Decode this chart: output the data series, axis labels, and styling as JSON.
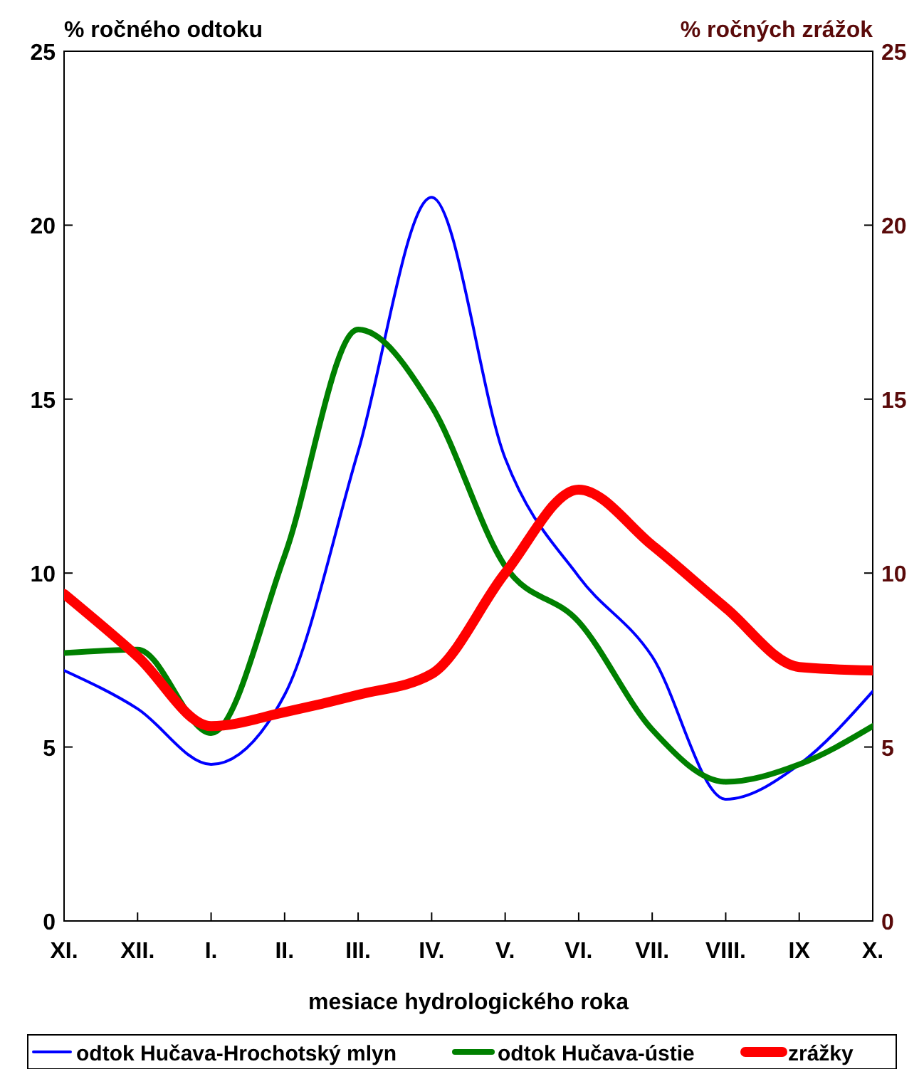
{
  "chart_data": {
    "type": "line",
    "xlabel": "mesiace hydrologického roka",
    "ylabel": "% ročného odtoku",
    "y2label": "% ročných zrážok",
    "categories": [
      "XI.",
      "XII.",
      "I.",
      "II.",
      "III.",
      "IV.",
      "V.",
      "VI.",
      "VII.",
      "VIII.",
      "IX",
      "X."
    ],
    "series": [
      {
        "name": "odtok Hučava-Hrochotský mlyn",
        "color": "#0000ff",
        "values": [
          7.2,
          6.1,
          4.5,
          6.5,
          13.5,
          20.8,
          13.3,
          9.9,
          7.6,
          3.5,
          4.5,
          6.6
        ]
      },
      {
        "name": "odtok Hučava-ústie",
        "color": "#008000",
        "values": [
          7.7,
          7.8,
          5.4,
          10.5,
          17.0,
          14.8,
          10.2,
          8.6,
          5.5,
          4.0,
          4.5,
          5.6
        ]
      },
      {
        "name": "zrážky",
        "color": "#ff0000",
        "axis": "y2",
        "values": [
          9.4,
          7.6,
          5.6,
          6.0,
          6.5,
          7.1,
          10.0,
          12.4,
          10.8,
          9.0,
          7.3,
          7.2
        ]
      }
    ],
    "ylim": [
      0,
      25
    ],
    "yticks": [
      0,
      5,
      10,
      15,
      20,
      25
    ],
    "y2lim": [
      0,
      25
    ],
    "y2ticks": [
      0,
      5,
      10,
      15,
      20,
      25
    ],
    "grid": false,
    "legend": "bottom",
    "marker": "none",
    "line_style": "solid"
  }
}
